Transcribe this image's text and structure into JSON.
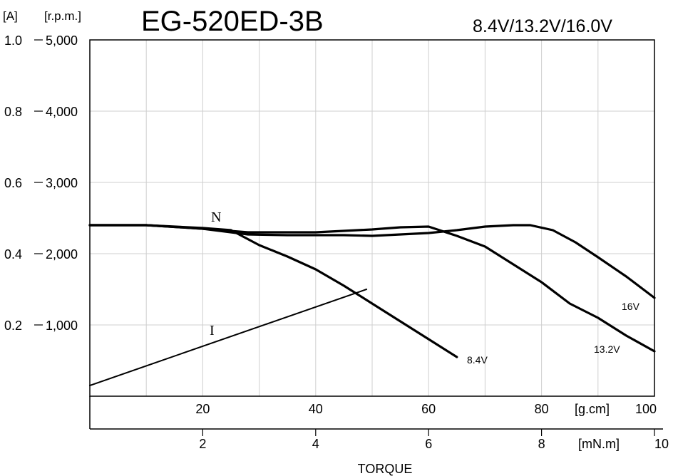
{
  "chart_data": {
    "type": "line",
    "title": "EG-520ED-3B",
    "subtitle": "8.4V/13.2V/16.0V",
    "left_axis_units": {
      "current": "[A]",
      "speed": "[r.p.m.]"
    },
    "y_current": {
      "ticks": [
        "0.2",
        "0.4",
        "0.6",
        "0.8",
        "1.0"
      ],
      "values": [
        0.2,
        0.4,
        0.6,
        0.8,
        1.0
      ],
      "range": [
        0,
        1.0
      ]
    },
    "y_speed": {
      "ticks": [
        "1,000",
        "2,000",
        "3,000",
        "4,000",
        "5,000"
      ],
      "values": [
        1000,
        2000,
        3000,
        4000,
        5000
      ],
      "range": [
        0,
        5000
      ]
    },
    "x_gcm": {
      "ticks": [
        "20",
        "40",
        "60",
        "80",
        "100"
      ],
      "values": [
        20,
        40,
        60,
        80,
        100
      ],
      "unit": "[g.cm]",
      "range": [
        0,
        100
      ]
    },
    "x_mNm": {
      "ticks": [
        "2",
        "4",
        "6",
        "8",
        "10"
      ],
      "values": [
        2,
        4,
        6,
        8,
        10
      ],
      "unit": "[mN.m]",
      "range": [
        0,
        10
      ]
    },
    "xlabel": "TORQUE",
    "grid": true,
    "curve_labels": {
      "speed": "N",
      "current": "I"
    },
    "series": [
      {
        "name": "8.4V",
        "quantity": "speed",
        "x": [
          0,
          5,
          10,
          15,
          20,
          25,
          30,
          35,
          40,
          45,
          50,
          55,
          60,
          65
        ],
        "y": [
          2400,
          2400,
          2400,
          2380,
          2360,
          2330,
          2120,
          1960,
          1780,
          1550,
          1300,
          1050,
          800,
          550
        ]
      },
      {
        "name": "13.2V",
        "quantity": "speed",
        "x": [
          0,
          10,
          20,
          28,
          40,
          50,
          55,
          60,
          65,
          70,
          75,
          80,
          85,
          90,
          95,
          100
        ],
        "y": [
          2400,
          2400,
          2350,
          2300,
          2300,
          2340,
          2370,
          2380,
          2250,
          2100,
          1850,
          1600,
          1300,
          1100,
          850,
          630
        ]
      },
      {
        "name": "16V",
        "quantity": "speed",
        "x": [
          0,
          10,
          20,
          28,
          35,
          45,
          50,
          60,
          65,
          70,
          75,
          78,
          82,
          86,
          90,
          95,
          100
        ],
        "y": [
          2400,
          2400,
          2350,
          2270,
          2260,
          2260,
          2250,
          2290,
          2330,
          2380,
          2400,
          2400,
          2330,
          2160,
          1950,
          1680,
          1380
        ]
      },
      {
        "name": "I",
        "quantity": "current",
        "x": [
          0,
          49
        ],
        "y": [
          0.03,
          0.3
        ]
      }
    ]
  }
}
